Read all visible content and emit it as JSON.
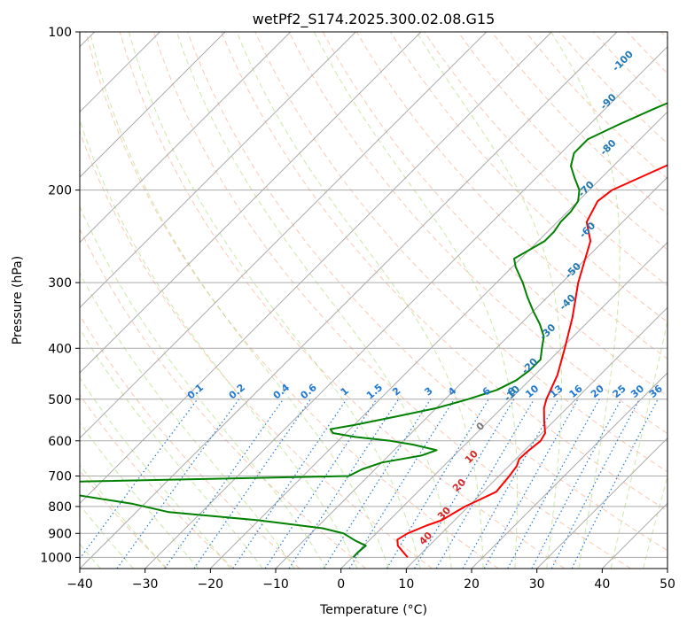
{
  "chart_data": {
    "type": "line",
    "diagram": "skew-T log-P",
    "title": "wetPf2_S174.2025.300.02.08.G15",
    "xlabel": "Temperature (°C)",
    "ylabel": "Pressure (hPa)",
    "xlim": [
      -40,
      50
    ],
    "ylim": [
      1050,
      100
    ],
    "y_scale": "log",
    "x_ticks": [
      -40,
      -30,
      -20,
      -10,
      0,
      10,
      20,
      30,
      40,
      50
    ],
    "y_ticks": [
      1000,
      900,
      800,
      700,
      600,
      500,
      400,
      300,
      200,
      100
    ],
    "grid": true,
    "series": [
      {
        "role": "temperature",
        "color": "#ff0000",
        "points": [
          [
            1000,
            8.5
          ],
          [
            950,
            5.2
          ],
          [
            925,
            4.2
          ],
          [
            900,
            4.8
          ],
          [
            870,
            6.5
          ],
          [
            850,
            8.0
          ],
          [
            800,
            9.5
          ],
          [
            780,
            10.5
          ],
          [
            750,
            12.0
          ],
          [
            700,
            11.6
          ],
          [
            670,
            11.2
          ],
          [
            650,
            10.5
          ],
          [
            630,
            10.6
          ],
          [
            600,
            11.0
          ],
          [
            580,
            10.5
          ],
          [
            550,
            8.5
          ],
          [
            520,
            6.5
          ],
          [
            500,
            5.5
          ],
          [
            450,
            3.5
          ],
          [
            400,
            0.5
          ],
          [
            350,
            -3.0
          ],
          [
            300,
            -7.5
          ],
          [
            250,
            -12.0
          ],
          [
            230,
            -15.5
          ],
          [
            210,
            -17.0
          ],
          [
            200,
            -16.5
          ],
          [
            180,
            -12.0
          ],
          [
            160,
            -7.5
          ],
          [
            145,
            -4.0
          ],
          [
            135,
            -1.5
          ],
          [
            125,
            0.0
          ],
          [
            115,
            1.0
          ],
          [
            105,
            3.0
          ],
          [
            100,
            4.5
          ]
        ]
      },
      {
        "role": "dewpoint",
        "color": "#008000",
        "points": [
          [
            1000,
            0.2
          ],
          [
            980,
            0.1
          ],
          [
            950,
            0.3
          ],
          [
            930,
            -2.0
          ],
          [
            900,
            -5.0
          ],
          [
            880,
            -9.0
          ],
          [
            850,
            -20.0
          ],
          [
            820,
            -35.0
          ],
          [
            790,
            -42.0
          ],
          [
            760,
            -52.0
          ],
          [
            740,
            -58.0
          ],
          [
            720,
            -60.0
          ],
          [
            700,
            -13.0
          ],
          [
            680,
            -12.0
          ],
          [
            660,
            -10.0
          ],
          [
            640,
            -5.0
          ],
          [
            625,
            -3.5
          ],
          [
            610,
            -8.0
          ],
          [
            600,
            -12.0
          ],
          [
            590,
            -18.0
          ],
          [
            580,
            -22.0
          ],
          [
            570,
            -23.0
          ],
          [
            560,
            -20.0
          ],
          [
            540,
            -15.0
          ],
          [
            520,
            -10.0
          ],
          [
            500,
            -6.5
          ],
          [
            480,
            -3.5
          ],
          [
            460,
            -2.0
          ],
          [
            440,
            -1.5
          ],
          [
            420,
            -1.5
          ],
          [
            400,
            -3.0
          ],
          [
            380,
            -4.5
          ],
          [
            360,
            -7.0
          ],
          [
            340,
            -10.0
          ],
          [
            320,
            -13.0
          ],
          [
            300,
            -16.0
          ],
          [
            280,
            -19.5
          ],
          [
            270,
            -21.0
          ],
          [
            260,
            -20.0
          ],
          [
            250,
            -19.0
          ],
          [
            240,
            -19.0
          ],
          [
            230,
            -19.5
          ],
          [
            220,
            -19.5
          ],
          [
            210,
            -20.0
          ],
          [
            200,
            -21.5
          ],
          [
            190,
            -24.0
          ],
          [
            180,
            -26.5
          ],
          [
            170,
            -28.0
          ],
          [
            160,
            -28.0
          ],
          [
            150,
            -25.5
          ],
          [
            140,
            -22.5
          ],
          [
            130,
            -19.0
          ],
          [
            120,
            -16.0
          ],
          [
            110,
            -13.5
          ],
          [
            100,
            -11.5
          ]
        ]
      }
    ],
    "isotherm_labels": [
      "-100",
      "-90",
      "-80",
      "-70",
      "-60",
      "-50",
      "-40",
      "-30",
      "-20",
      "-10",
      "0",
      "10",
      "20",
      "30",
      "40"
    ],
    "mixing_ratio_labels": [
      "0.1",
      "0.2",
      "0.4",
      "0.6",
      "1",
      "1.5",
      "2",
      "3",
      "4",
      "6",
      "8",
      "10",
      "13",
      "16",
      "20",
      "25",
      "30",
      "36"
    ],
    "colors": {
      "temperature": "#ff0000",
      "dewpoint": "#008000",
      "isotherm": "#aaaaaa",
      "dry_adiabat": "#f4a582",
      "moist_adiabat": "#a6d96a",
      "mixing_ratio": "#1f78d4",
      "isotherm_label_cold": "#1f77b4",
      "isotherm_label_zero": "#777777",
      "isotherm_label_warm": "#d62728"
    }
  }
}
